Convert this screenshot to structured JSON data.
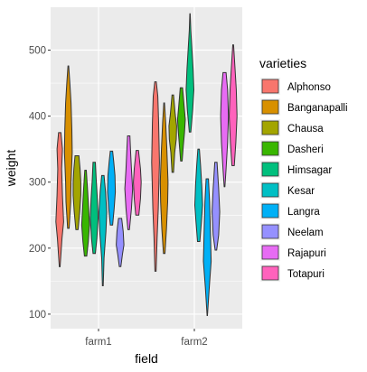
{
  "chart_data": {
    "type": "violin",
    "xlabel": "field",
    "ylabel": "weight",
    "categories": [
      "farm1",
      "farm2"
    ],
    "y_ticks": [
      100,
      200,
      300,
      400,
      500
    ],
    "ylim": [
      78,
      565
    ],
    "grid": true,
    "panel_background": "#EBEBEB",
    "legend": {
      "title": "varieties",
      "position": "right",
      "entries": [
        "Alphonso",
        "Banganapalli",
        "Chausa",
        "Dasheri",
        "Himsagar",
        "Kesar",
        "Langra",
        "Neelam",
        "Rajapuri",
        "Totapuri"
      ]
    },
    "colors": {
      "Alphonso": "#F8766D",
      "Banganapalli": "#D89000",
      "Chausa": "#A3A500",
      "Dasheri": "#39B600",
      "Himsagar": "#00BF7D",
      "Kesar": "#00BFC4",
      "Langra": "#00B0F6",
      "Neelam": "#9590FF",
      "Rajapuri": "#E76BF3",
      "Totapuri": "#FF62BC"
    },
    "series": [
      {
        "name": "Alphonso",
        "groups": {
          "farm1": {
            "min": 172,
            "max": 375,
            "shape": [
              [
                172,
                0.1
              ],
              [
                215,
                0.6
              ],
              [
                240,
                1.0
              ],
              [
                280,
                0.7
              ],
              [
                320,
                0.5
              ],
              [
                350,
                0.7
              ],
              [
                375,
                0.3
              ]
            ]
          },
          "farm2": {
            "min": 165,
            "max": 452,
            "shape": [
              [
                165,
                0.15
              ],
              [
                215,
                0.4
              ],
              [
                260,
                0.7
              ],
              [
                330,
                1.0
              ],
              [
                390,
                0.8
              ],
              [
                430,
                0.6
              ],
              [
                452,
                0.2
              ]
            ]
          }
        }
      },
      {
        "name": "Banganapalli",
        "groups": {
          "farm1": {
            "min": 230,
            "max": 476,
            "shape": [
              [
                230,
                0.2
              ],
              [
                270,
                0.6
              ],
              [
                300,
                0.7
              ],
              [
                345,
                1.0
              ],
              [
                380,
                0.9
              ],
              [
                420,
                0.7
              ],
              [
                450,
                0.4
              ],
              [
                476,
                0.1
              ]
            ]
          },
          "farm2": {
            "min": 192,
            "max": 420,
            "shape": [
              [
                192,
                0.2
              ],
              [
                230,
                0.6
              ],
              [
                270,
                0.9
              ],
              [
                300,
                1.0
              ],
              [
                350,
                0.7
              ],
              [
                390,
                0.4
              ],
              [
                420,
                0.1
              ]
            ]
          }
        }
      },
      {
        "name": "Chausa",
        "groups": {
          "farm1": {
            "min": 228,
            "max": 340,
            "shape": [
              [
                228,
                0.3
              ],
              [
                255,
                0.7
              ],
              [
                280,
                1.0
              ],
              [
                300,
                1.0
              ],
              [
                320,
                0.8
              ],
              [
                340,
                0.5
              ]
            ]
          },
          "farm2": {
            "min": 315,
            "max": 432,
            "shape": [
              [
                315,
                0.2
              ],
              [
                345,
                0.5
              ],
              [
                365,
                0.9
              ],
              [
                385,
                1.0
              ],
              [
                405,
                0.6
              ],
              [
                432,
                0.2
              ]
            ]
          }
        }
      },
      {
        "name": "Dasheri",
        "groups": {
          "farm1": {
            "min": 188,
            "max": 318,
            "shape": [
              [
                188,
                0.3
              ],
              [
                210,
                0.7
              ],
              [
                235,
                1.0
              ],
              [
                260,
                0.8
              ],
              [
                290,
                0.5
              ],
              [
                318,
                0.2
              ]
            ]
          },
          "farm2": {
            "min": 332,
            "max": 443,
            "shape": [
              [
                332,
                0.2
              ],
              [
                355,
                0.5
              ],
              [
                375,
                0.8
              ],
              [
                395,
                1.0
              ],
              [
                415,
                0.7
              ],
              [
                443,
                0.3
              ]
            ]
          }
        }
      },
      {
        "name": "Himsagar",
        "groups": {
          "farm1": {
            "min": 192,
            "max": 330,
            "shape": [
              [
                192,
                0.3
              ],
              [
                215,
                0.7
              ],
              [
                245,
                1.0
              ],
              [
                275,
                0.8
              ],
              [
                305,
                0.5
              ],
              [
                330,
                0.3
              ]
            ]
          },
          "farm2": {
            "min": 376,
            "max": 555,
            "shape": [
              [
                376,
                0.2
              ],
              [
                410,
                0.7
              ],
              [
                440,
                1.0
              ],
              [
                470,
                0.8
              ],
              [
                500,
                0.5
              ],
              [
                530,
                0.2
              ],
              [
                555,
                0.05
              ]
            ]
          }
        }
      },
      {
        "name": "Kesar",
        "groups": {
          "farm1": {
            "min": 143,
            "max": 310,
            "shape": [
              [
                143,
                0.1
              ],
              [
                185,
                0.3
              ],
              [
                225,
                0.8
              ],
              [
                255,
                1.0
              ],
              [
                285,
                0.7
              ],
              [
                310,
                0.3
              ]
            ]
          },
          "farm2": {
            "min": 210,
            "max": 350,
            "shape": [
              [
                210,
                0.3
              ],
              [
                240,
                0.7
              ],
              [
                265,
                1.0
              ],
              [
                295,
                0.8
              ],
              [
                325,
                0.5
              ],
              [
                350,
                0.2
              ]
            ]
          }
        }
      },
      {
        "name": "Langra",
        "groups": {
          "farm1": {
            "min": 235,
            "max": 347,
            "shape": [
              [
                235,
                0.3
              ],
              [
                260,
                0.7
              ],
              [
                285,
                1.0
              ],
              [
                310,
                0.9
              ],
              [
                330,
                0.6
              ],
              [
                347,
                0.3
              ]
            ]
          },
          "farm2": {
            "min": 98,
            "max": 305,
            "shape": [
              [
                98,
                0.05
              ],
              [
                140,
                0.5
              ],
              [
                180,
                1.0
              ],
              [
                230,
                0.8
              ],
              [
                270,
                0.6
              ],
              [
                305,
                0.3
              ]
            ]
          }
        }
      },
      {
        "name": "Neelam",
        "groups": {
          "farm1": {
            "min": 172,
            "max": 245,
            "shape": [
              [
                172,
                0.2
              ],
              [
                190,
                0.6
              ],
              [
                205,
                1.0
              ],
              [
                225,
                0.8
              ],
              [
                245,
                0.4
              ]
            ]
          },
          "farm2": {
            "min": 197,
            "max": 330,
            "shape": [
              [
                197,
                0.2
              ],
              [
                220,
                0.7
              ],
              [
                255,
                1.0
              ],
              [
                290,
                0.7
              ],
              [
                330,
                0.3
              ]
            ]
          }
        }
      },
      {
        "name": "Rajapuri",
        "groups": {
          "farm1": {
            "min": 228,
            "max": 370,
            "shape": [
              [
                228,
                0.2
              ],
              [
                260,
                0.7
              ],
              [
                290,
                1.0
              ],
              [
                320,
                0.7
              ],
              [
                345,
                0.5
              ],
              [
                370,
                0.3
              ]
            ]
          },
          "farm2": {
            "min": 293,
            "max": 466,
            "shape": [
              [
                293,
                0.1
              ],
              [
                320,
                0.4
              ],
              [
                360,
                0.8
              ],
              [
                400,
                1.0
              ],
              [
                440,
                0.8
              ],
              [
                466,
                0.4
              ]
            ]
          }
        }
      },
      {
        "name": "Totapuri",
        "groups": {
          "farm1": {
            "min": 250,
            "max": 348,
            "shape": [
              [
                250,
                0.4
              ],
              [
                275,
                0.8
              ],
              [
                300,
                1.0
              ],
              [
                320,
                0.8
              ],
              [
                348,
                0.3
              ]
            ]
          },
          "farm2": {
            "min": 325,
            "max": 508,
            "shape": [
              [
                325,
                0.3
              ],
              [
                360,
                0.7
              ],
              [
                400,
                1.0
              ],
              [
                440,
                0.8
              ],
              [
                470,
                0.5
              ],
              [
                508,
                0.1
              ]
            ]
          }
        }
      }
    ]
  }
}
